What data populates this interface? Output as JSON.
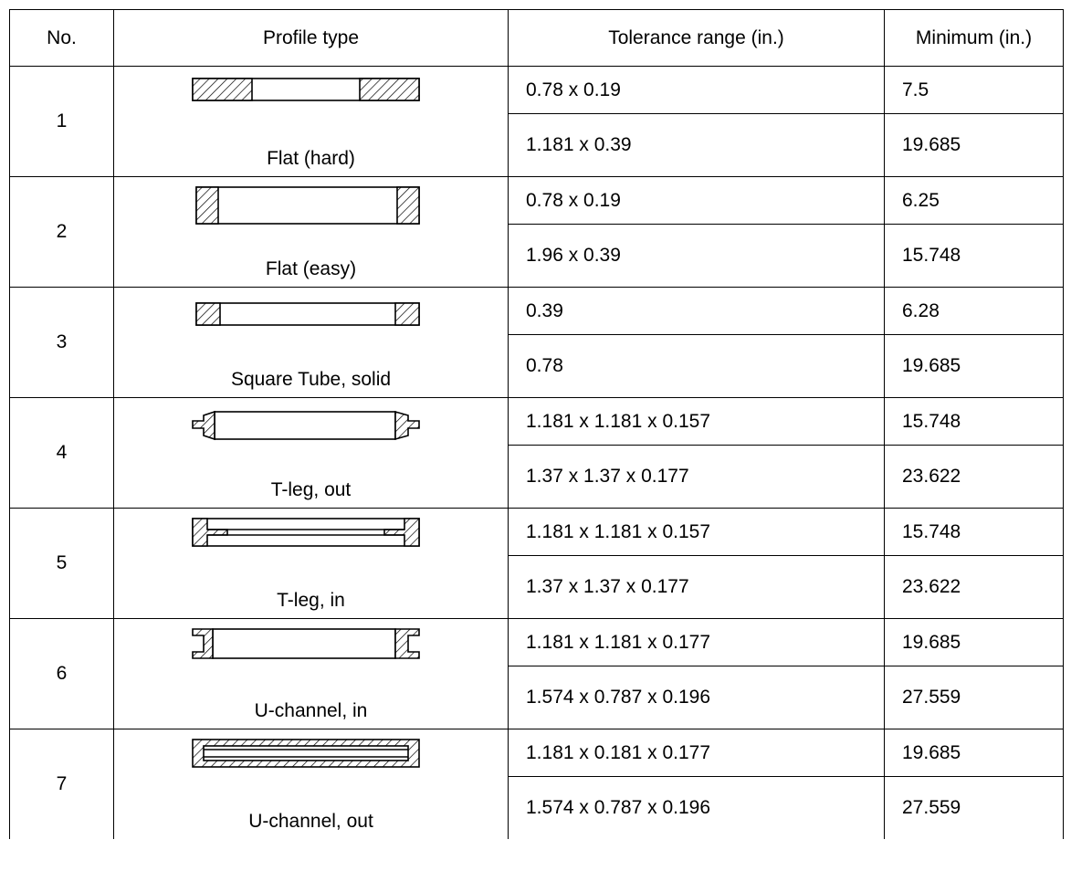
{
  "headers": {
    "no": "No.",
    "profile": "Profile type",
    "tolerance": "Tolerance range (in.)",
    "minimum": "Minimum (in.)"
  },
  "rows": [
    {
      "no": "1",
      "profile": "Flat (hard)",
      "icon": "flat-hard-profile-icon",
      "specs": [
        {
          "tolerance": "0.78 x 0.19",
          "minimum": "7.5"
        },
        {
          "tolerance": "1.181 x 0.39",
          "minimum": "19.685"
        }
      ]
    },
    {
      "no": "2",
      "profile": "Flat (easy)",
      "icon": "flat-easy-profile-icon",
      "specs": [
        {
          "tolerance": "0.78 x 0.19",
          "minimum": "6.25"
        },
        {
          "tolerance": "1.96 x 0.39",
          "minimum": "15.748"
        }
      ]
    },
    {
      "no": "3",
      "profile": "Square Tube, solid",
      "icon": "square-tube-profile-icon",
      "specs": [
        {
          "tolerance": "0.39",
          "minimum": "6.28"
        },
        {
          "tolerance": "0.78",
          "minimum": "19.685"
        }
      ]
    },
    {
      "no": "4",
      "profile": "T-leg, out",
      "icon": "t-leg-out-profile-icon",
      "specs": [
        {
          "tolerance": "1.181 x 1.181 x 0.157",
          "minimum": "15.748"
        },
        {
          "tolerance": "1.37 x 1.37 x 0.177",
          "minimum": "23.622"
        }
      ]
    },
    {
      "no": "5",
      "profile": "T-leg, in",
      "icon": "t-leg-in-profile-icon",
      "specs": [
        {
          "tolerance": "1.181 x 1.181 x 0.157",
          "minimum": "15.748"
        },
        {
          "tolerance": "1.37 x 1.37 x 0.177",
          "minimum": "23.622"
        }
      ]
    },
    {
      "no": "6",
      "profile": "U-channel, in",
      "icon": "u-channel-in-profile-icon",
      "specs": [
        {
          "tolerance": "1.181 x 1.181 x 0.177",
          "minimum": "19.685"
        },
        {
          "tolerance": "1.574 x 0.787 x 0.196",
          "minimum": "27.559"
        }
      ]
    },
    {
      "no": "7",
      "profile": "U-channel, out",
      "icon": "u-channel-out-profile-icon",
      "specs": [
        {
          "tolerance": "1.181 x 0.181 x 0.177",
          "minimum": "19.685"
        },
        {
          "tolerance": "1.574 x 0.787 x 0.196",
          "minimum": "27.559"
        }
      ]
    }
  ]
}
